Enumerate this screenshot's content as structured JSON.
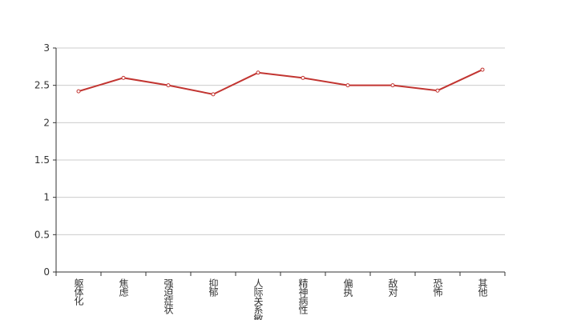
{
  "chart_data": {
    "type": "line",
    "categories": [
      "躯体化",
      "焦虑",
      "强迫症状",
      "抑郁",
      "人际关系敏感",
      "精神病性",
      "偏执",
      "敌对",
      "恐怖",
      "其他"
    ],
    "series": [
      {
        "color": "#c23531",
        "values": [
          2.42,
          2.6,
          2.5,
          2.38,
          2.67,
          2.6,
          2.5,
          2.5,
          2.43,
          2.71
        ]
      }
    ],
    "ylim": [
      0,
      3
    ],
    "yticks": [
      0,
      0.5,
      1,
      1.5,
      2,
      2.5,
      3
    ],
    "grid": true
  }
}
